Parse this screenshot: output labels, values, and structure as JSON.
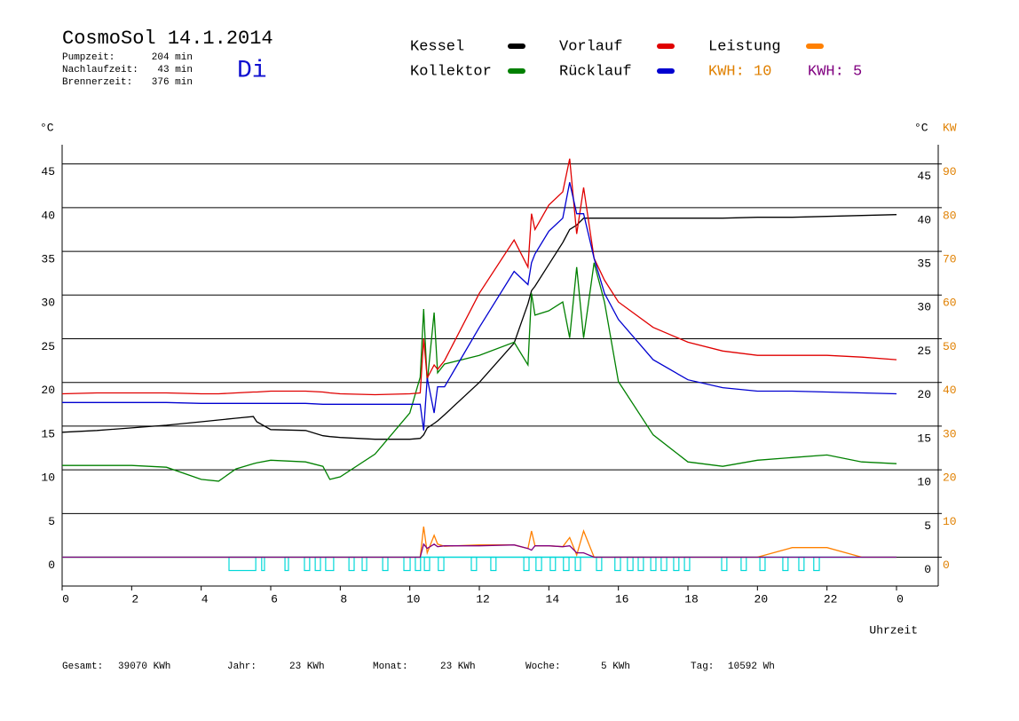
{
  "chart_data": {
    "type": "line",
    "title": "CosmoSol 14.1.2014",
    "day": "Di",
    "stats": [
      {
        "label": "Pumpzeit:",
        "value": "204 min"
      },
      {
        "label": "Nachlaufzeit:",
        "value": "43 min"
      },
      {
        "label": "Brennerzeit:",
        "value": "376 min"
      }
    ],
    "y_label": "°C",
    "y2_label_left": "°C",
    "y2_label": "KW",
    "x_label": "Uhrzeit",
    "kwh_labels": [
      {
        "text": "KWH: 10",
        "color": "#e08000"
      },
      {
        "text": "KWH: 5",
        "color": "#800080"
      }
    ],
    "footer": [
      {
        "label": "Gesamt:",
        "value": "39070 KWh"
      },
      {
        "label": "Jahr:",
        "value": "23 KWh"
      },
      {
        "label": "Monat:",
        "value": "23 KWh"
      },
      {
        "label": "Woche:",
        "value": "5 KWh"
      },
      {
        "label": "Tag:",
        "value": "10592 Wh"
      }
    ],
    "xlim": [
      0,
      25.2
    ],
    "xticks": [
      0,
      2,
      4,
      6,
      8,
      10,
      12,
      14,
      16,
      18,
      20,
      22,
      {
        "value": 24,
        "label": "0"
      }
    ],
    "ylim": [
      -3.3,
      47.2
    ],
    "yticks": [
      0,
      5,
      10,
      15,
      20,
      25,
      30,
      35,
      40,
      45
    ],
    "y2lim": [
      -6.6,
      94.4
    ],
    "y2ticks": [
      0,
      10,
      20,
      30,
      40,
      50,
      60,
      70,
      80,
      90
    ],
    "grid": true,
    "x": [
      0,
      1,
      2,
      3,
      4,
      4.5,
      5,
      5.5,
      5.6,
      6,
      7,
      7.5,
      7.7,
      8,
      9,
      10,
      10.3,
      10.4,
      10.5,
      10.7,
      10.8,
      11,
      12,
      13,
      13.4,
      13.5,
      13.6,
      14,
      14.4,
      14.6,
      14.8,
      15,
      15.3,
      15.6,
      16,
      17,
      18,
      19,
      20,
      21,
      22,
      23,
      24
    ],
    "series": [
      {
        "name": "Kessel",
        "color": "#000000",
        "values": [
          14.3,
          14.5,
          14.8,
          15.1,
          15.5,
          15.7,
          15.9,
          16.1,
          15.5,
          14.6,
          14.5,
          13.9,
          13.8,
          13.7,
          13.5,
          13.5,
          13.6,
          14.0,
          14.8,
          15.3,
          15.6,
          16.3,
          20.0,
          24.5,
          29.0,
          30.5,
          31.0,
          33.5,
          36.0,
          37.5,
          38.0,
          38.8,
          38.8,
          38.8,
          38.8,
          38.8,
          38.8,
          38.8,
          38.9,
          38.9,
          39.0,
          39.1,
          39.2
        ]
      },
      {
        "name": "Kollektor",
        "color": "#008000",
        "values": [
          10.5,
          10.5,
          10.5,
          10.3,
          8.9,
          8.7,
          10.1,
          10.7,
          10.8,
          11.1,
          10.9,
          10.4,
          8.9,
          9.2,
          11.8,
          16.5,
          20.6,
          28.4,
          20.0,
          28.0,
          21.1,
          22.1,
          23.1,
          24.6,
          22.0,
          30.2,
          27.7,
          28.2,
          29.2,
          25.1,
          33.2,
          25.1,
          33.7,
          29.2,
          20.1,
          14.0,
          10.9,
          10.4,
          11.1,
          11.4,
          11.7,
          10.9,
          10.7
        ]
      },
      {
        "name": "Vorlauf",
        "color": "#e00000",
        "values": [
          18.7,
          18.8,
          18.8,
          18.8,
          18.7,
          18.7,
          18.8,
          18.9,
          18.9,
          19.0,
          19.0,
          18.9,
          18.8,
          18.7,
          18.6,
          18.7,
          18.8,
          25.0,
          20.5,
          22.0,
          21.5,
          22.5,
          30.2,
          36.3,
          33.2,
          39.3,
          37.5,
          40.3,
          41.8,
          45.6,
          37.0,
          42.3,
          34.2,
          31.7,
          29.2,
          26.3,
          24.6,
          23.6,
          23.1,
          23.1,
          23.1,
          22.9,
          22.6
        ]
      },
      {
        "name": "Rücklauf",
        "color": "#0000d0",
        "values": [
          17.7,
          17.7,
          17.7,
          17.7,
          17.6,
          17.6,
          17.6,
          17.6,
          17.6,
          17.6,
          17.6,
          17.5,
          17.5,
          17.5,
          17.5,
          17.5,
          17.5,
          14.5,
          20.5,
          16.5,
          19.5,
          19.5,
          26.3,
          32.7,
          31.2,
          33.7,
          34.7,
          37.3,
          38.8,
          42.9,
          39.3,
          39.3,
          34.2,
          30.2,
          27.2,
          22.6,
          20.3,
          19.4,
          19.0,
          19.0,
          18.9,
          18.8,
          18.7
        ]
      },
      {
        "name": "Leistung",
        "color": "#ff8000",
        "axis": "y2",
        "values": [
          0,
          0,
          0,
          0,
          0,
          0,
          0,
          0,
          0,
          0,
          0,
          0,
          0,
          0,
          0,
          0,
          0,
          7,
          1,
          5,
          3,
          2.5,
          2.8,
          2.8,
          2,
          6,
          2.6,
          2.6,
          2.4,
          4.5,
          0.5,
          6,
          0,
          0,
          0,
          0,
          0,
          0,
          0,
          2.2,
          2.2,
          0,
          0
        ]
      },
      {
        "color": "#800080",
        "axis": "y2",
        "values": [
          0,
          0,
          0,
          0,
          0,
          0,
          0,
          0,
          0,
          0,
          0,
          0,
          0,
          0,
          0,
          0,
          0,
          3,
          2,
          3,
          2.4,
          2.6,
          2.6,
          2.8,
          2,
          1.6,
          2.6,
          2.6,
          2.4,
          2.6,
          1,
          1,
          0,
          0,
          0,
          0,
          0,
          0,
          0,
          0,
          0,
          0,
          0
        ]
      }
    ],
    "pump": {
      "color": "#00d8d8",
      "starts": [
        4.8,
        5.74,
        6.41,
        6.97,
        7.28,
        7.58,
        8.25,
        8.63,
        9.22,
        9.83,
        10.16,
        10.42,
        10.82,
        11.77,
        12.33,
        13.28,
        13.63,
        14.04,
        14.42,
        14.76,
        15.37,
        15.9,
        16.26,
        16.57,
        16.93,
        17.23,
        17.59,
        17.9,
        18.97,
        19.53,
        20.07,
        20.73,
        21.19,
        21.62
      ],
      "ends": [
        5.57,
        5.82,
        6.51,
        7.12,
        7.43,
        7.81,
        8.4,
        8.76,
        9.37,
        10.01,
        10.31,
        10.57,
        10.98,
        11.92,
        12.48,
        13.43,
        13.79,
        14.19,
        14.58,
        14.91,
        15.52,
        16.06,
        16.42,
        16.72,
        17.08,
        17.39,
        17.74,
        18.05,
        19.12,
        19.68,
        20.22,
        20.88,
        21.34,
        21.78
      ]
    }
  }
}
